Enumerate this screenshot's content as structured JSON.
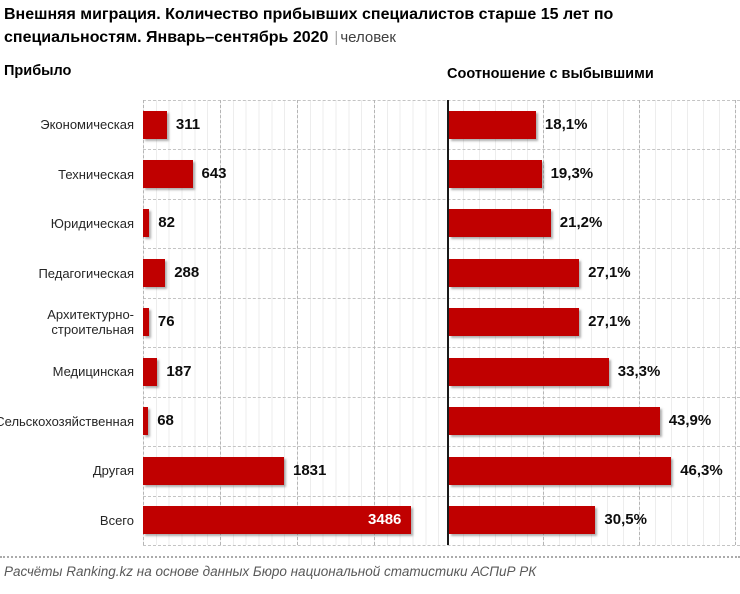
{
  "title": {
    "text": "Внешняя миграция. Количество прибывших специалистов старше 15 лет по специальностям. Январь–сентябрь 2020",
    "separator": "|",
    "unit_suffix": "человек"
  },
  "sections": {
    "left_header": "Прибыло",
    "right_header": "Соотношение с выбывшими"
  },
  "footer": {
    "text": "Расчёты Ranking.kz на основе данных Бюро национальной статистики АСПиР РК"
  },
  "colors": {
    "bar": "#c00000",
    "bar_value_inside": "#ffffff",
    "axis": "#1a1a1a",
    "title_separator": "#a6a6a6",
    "title_unit": "#3f3f3f",
    "footer_text": "#595959"
  },
  "chart_data": [
    {
      "type": "bar",
      "orientation": "horizontal",
      "title": "Прибыло",
      "unit": "человек",
      "categories": [
        "Экономическая",
        "Техническая",
        "Юридическая",
        "Педагогическая",
        "Архитектурно-строительная",
        "Медицинская",
        "Сельскохозяйственная",
        "Другая",
        "Всего"
      ],
      "values": [
        311,
        643,
        82,
        288,
        76,
        187,
        68,
        1831,
        3486
      ],
      "value_labels": [
        "311",
        "643",
        "82",
        "288",
        "76",
        "187",
        "68",
        "1831",
        "3486"
      ],
      "xlim": [
        0,
        3950
      ],
      "grid_interval": 1000,
      "grid": true,
      "legend": "none",
      "last_value_inside_bar": true
    },
    {
      "type": "bar",
      "orientation": "horizontal",
      "title": "Соотношение с выбывшими",
      "unit": "%",
      "categories": [
        "Экономическая",
        "Техническая",
        "Юридическая",
        "Педагогическая",
        "Архитектурно-строительная",
        "Медицинская",
        "Сельскохозяйственная",
        "Другая",
        "Всего"
      ],
      "values": [
        18.1,
        19.3,
        21.2,
        27.1,
        27.1,
        33.3,
        43.9,
        46.3,
        30.5
      ],
      "value_labels": [
        "18,1%",
        "19,3%",
        "21,2%",
        "27,1%",
        "27,1%",
        "33,3%",
        "43,9%",
        "46,3%",
        "30,5%"
      ],
      "xlim": [
        0,
        61
      ],
      "grid_interval": 20,
      "grid": true,
      "legend": "none",
      "last_value_inside_bar": false
    }
  ]
}
